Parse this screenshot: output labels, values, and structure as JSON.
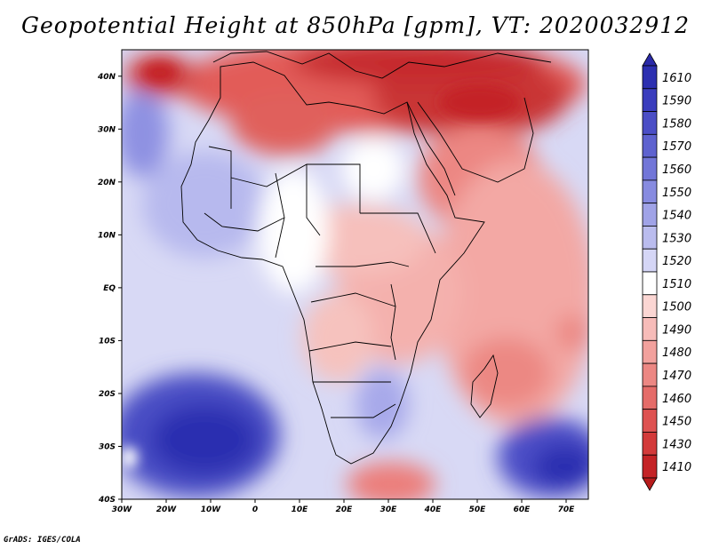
{
  "title": "Geopotential Height at 850hPa [gpm], VT: 2020032912",
  "footer": "GrADS: IGES/COLA",
  "map": {
    "lon_range": [
      -30,
      75
    ],
    "lat_range": [
      -40,
      45
    ],
    "x_ticks": [
      {
        "lon": -30,
        "label": "30W"
      },
      {
        "lon": -20,
        "label": "20W"
      },
      {
        "lon": -10,
        "label": "10W"
      },
      {
        "lon": 0,
        "label": "0"
      },
      {
        "lon": 10,
        "label": "10E"
      },
      {
        "lon": 20,
        "label": "20E"
      },
      {
        "lon": 30,
        "label": "30E"
      },
      {
        "lon": 40,
        "label": "40E"
      },
      {
        "lon": 50,
        "label": "50E"
      },
      {
        "lon": 60,
        "label": "60E"
      },
      {
        "lon": 70,
        "label": "70E"
      }
    ],
    "y_ticks": [
      {
        "lat": 40,
        "label": "40N"
      },
      {
        "lat": 30,
        "label": "30N"
      },
      {
        "lat": 20,
        "label": "20N"
      },
      {
        "lat": 10,
        "label": "10N"
      },
      {
        "lat": 0,
        "label": "EQ"
      },
      {
        "lat": -10,
        "label": "10S"
      },
      {
        "lat": -20,
        "label": "20S"
      },
      {
        "lat": -30,
        "label": "30S"
      },
      {
        "lat": -40,
        "label": "40S"
      }
    ]
  },
  "colorbar": {
    "levels": [
      {
        "label": "1610",
        "color": "#2c2fb0"
      },
      {
        "label": "1590",
        "color": "#3a3dbd"
      },
      {
        "label": "1580",
        "color": "#4b4ec6"
      },
      {
        "label": "1570",
        "color": "#5e62cf"
      },
      {
        "label": "1560",
        "color": "#7276d8"
      },
      {
        "label": "1550",
        "color": "#878be0"
      },
      {
        "label": "1540",
        "color": "#a0a3e7"
      },
      {
        "label": "1530",
        "color": "#babcee"
      },
      {
        "label": "1520",
        "color": "#d5d6f6"
      },
      {
        "label": "1510",
        "color": "#ffffff"
      },
      {
        "label": "1500",
        "color": "#fbd6d3"
      },
      {
        "label": "1490",
        "color": "#f7bcb9"
      },
      {
        "label": "1480",
        "color": "#f2a19d"
      },
      {
        "label": "1470",
        "color": "#ec8783"
      },
      {
        "label": "1460",
        "color": "#e56c69"
      },
      {
        "label": "1450",
        "color": "#de5251"
      },
      {
        "label": "1430",
        "color": "#d33a3a"
      },
      {
        "label": "1410",
        "color": "#c42326"
      }
    ],
    "top_arrow_color": "#2a2aa8",
    "bottom_arrow_color": "#b71c1c"
  }
}
